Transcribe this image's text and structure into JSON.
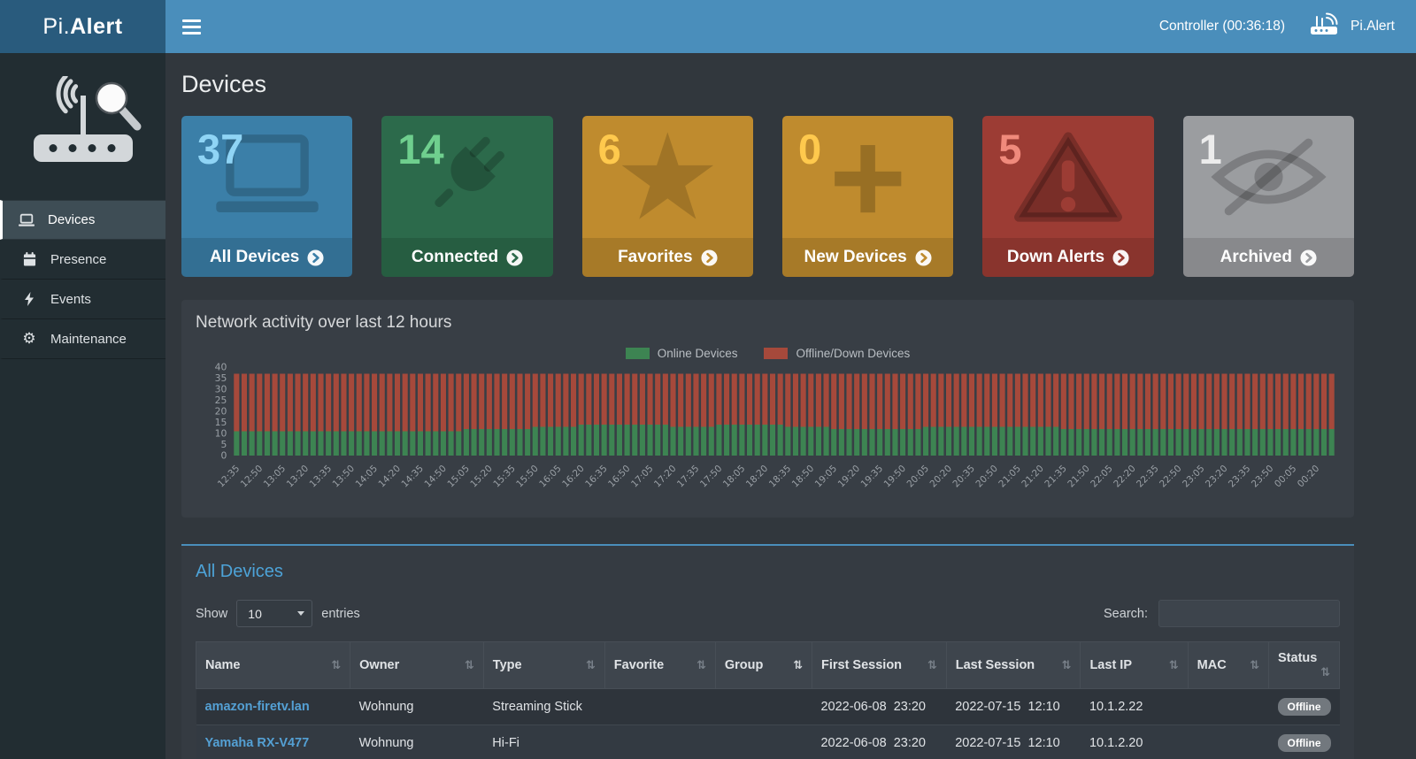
{
  "header": {
    "logo_pre": "Pi.",
    "logo_bold": "Alert",
    "controller": "Controller (00:36:18)",
    "brand_right": "Pi.Alert"
  },
  "page": {
    "title": "Devices"
  },
  "sidebar": {
    "items": [
      {
        "label": "Devices",
        "icon": "laptop-icon",
        "active": true
      },
      {
        "label": "Presence",
        "icon": "calendar-icon",
        "active": false
      },
      {
        "label": "Events",
        "icon": "bolt-icon",
        "active": false
      },
      {
        "label": "Maintenance",
        "icon": "gear-icon",
        "active": false
      }
    ]
  },
  "cards": [
    {
      "value": "37",
      "label": "All Devices",
      "icon": "laptop",
      "color": "#3b7fa8",
      "value_color": "#8fd4f5"
    },
    {
      "value": "14",
      "label": "Connected",
      "icon": "plug",
      "color": "#2c6a4b",
      "value_color": "#6fcf8e"
    },
    {
      "value": "6",
      "label": "Favorites",
      "icon": "star",
      "color": "#bf8b2e",
      "value_color": "#ffc94d"
    },
    {
      "value": "0",
      "label": "New Devices",
      "icon": "plus",
      "color": "#bf8b2e",
      "value_color": "#ffc94d"
    },
    {
      "value": "5",
      "label": "Down Alerts",
      "icon": "warning",
      "color": "#9c3c34",
      "value_color": "#f08a7c"
    },
    {
      "value": "1",
      "label": "Archived",
      "icon": "eye-slash",
      "color": "#9b9da0",
      "value_color": "#ececec"
    }
  ],
  "chart_data": {
    "type": "bar",
    "stacked": true,
    "title": "Network activity over last 12 hours",
    "ylim": [
      0,
      40
    ],
    "y_step": 5,
    "bars_per_label": 3,
    "legend_position": "top-center",
    "x_labels": [
      "12:35",
      "12:50",
      "13:05",
      "13:20",
      "13:35",
      "13:50",
      "14:05",
      "14:20",
      "14:35",
      "14:50",
      "15:05",
      "15:20",
      "15:35",
      "15:50",
      "16:05",
      "16:20",
      "16:35",
      "16:50",
      "17:05",
      "17:20",
      "17:35",
      "17:50",
      "18:05",
      "18:20",
      "18:35",
      "18:50",
      "19:05",
      "19:20",
      "19:35",
      "19:50",
      "20:05",
      "20:20",
      "20:35",
      "20:50",
      "21:05",
      "21:20",
      "21:35",
      "21:50",
      "22:05",
      "22:20",
      "22:35",
      "22:50",
      "23:05",
      "23:20",
      "23:35",
      "23:50",
      "00:05",
      "00:20"
    ],
    "series": [
      {
        "name": "Online Devices",
        "color": "#3d8452",
        "values": [
          11,
          11,
          11,
          11,
          11,
          11,
          11,
          11,
          11,
          11,
          12,
          12,
          12,
          13,
          13,
          14,
          14,
          14,
          14,
          13,
          13,
          14,
          14,
          14,
          13,
          13,
          12,
          12,
          12,
          12,
          13,
          13,
          13,
          13,
          13,
          13,
          12,
          12,
          12,
          12,
          12,
          12,
          12,
          12,
          12,
          12,
          12,
          12
        ]
      },
      {
        "name": "Offline/Down Devices",
        "color": "#a6493b",
        "values": [
          26,
          26,
          26,
          26,
          26,
          26,
          26,
          26,
          26,
          26,
          25,
          25,
          25,
          24,
          24,
          23,
          23,
          23,
          23,
          24,
          24,
          23,
          23,
          23,
          24,
          24,
          25,
          25,
          25,
          25,
          24,
          24,
          24,
          24,
          24,
          24,
          25,
          25,
          25,
          25,
          25,
          25,
          25,
          25,
          25,
          25,
          25,
          25
        ]
      }
    ]
  },
  "table": {
    "heading": "All Devices",
    "show_label": "Show",
    "entries_label": "entries",
    "page_size": "10",
    "search_label": "Search:",
    "search_value": "",
    "sort_icon": "⇅",
    "columns": [
      {
        "label": "Name",
        "key": "name"
      },
      {
        "label": "Owner",
        "key": "owner"
      },
      {
        "label": "Type",
        "key": "type"
      },
      {
        "label": "Favorite",
        "key": "favorite"
      },
      {
        "label": "Group",
        "key": "group",
        "sorted": true
      },
      {
        "label": "First Session",
        "key": "first_session"
      },
      {
        "label": "Last Session",
        "key": "last_session"
      },
      {
        "label": "Last IP",
        "key": "last_ip"
      },
      {
        "label": "MAC",
        "key": "mac"
      },
      {
        "label": "Status",
        "key": "status"
      }
    ],
    "rows": [
      {
        "name": "amazon-firetv.lan",
        "owner": "Wohnung",
        "type": "Streaming Stick",
        "favorite": "",
        "group": "",
        "first_session": "2022-06-08  23:20",
        "last_session": "2022-07-15  12:10",
        "last_ip": "10.1.2.22",
        "mac": "",
        "status": "Offline"
      },
      {
        "name": "Yamaha RX-V477",
        "owner": "Wohnung",
        "type": "Hi-Fi",
        "favorite": "",
        "group": "",
        "first_session": "2022-06-08  23:20",
        "last_session": "2022-07-15  12:10",
        "last_ip": "10.1.2.20",
        "mac": "",
        "status": "Offline"
      }
    ]
  }
}
